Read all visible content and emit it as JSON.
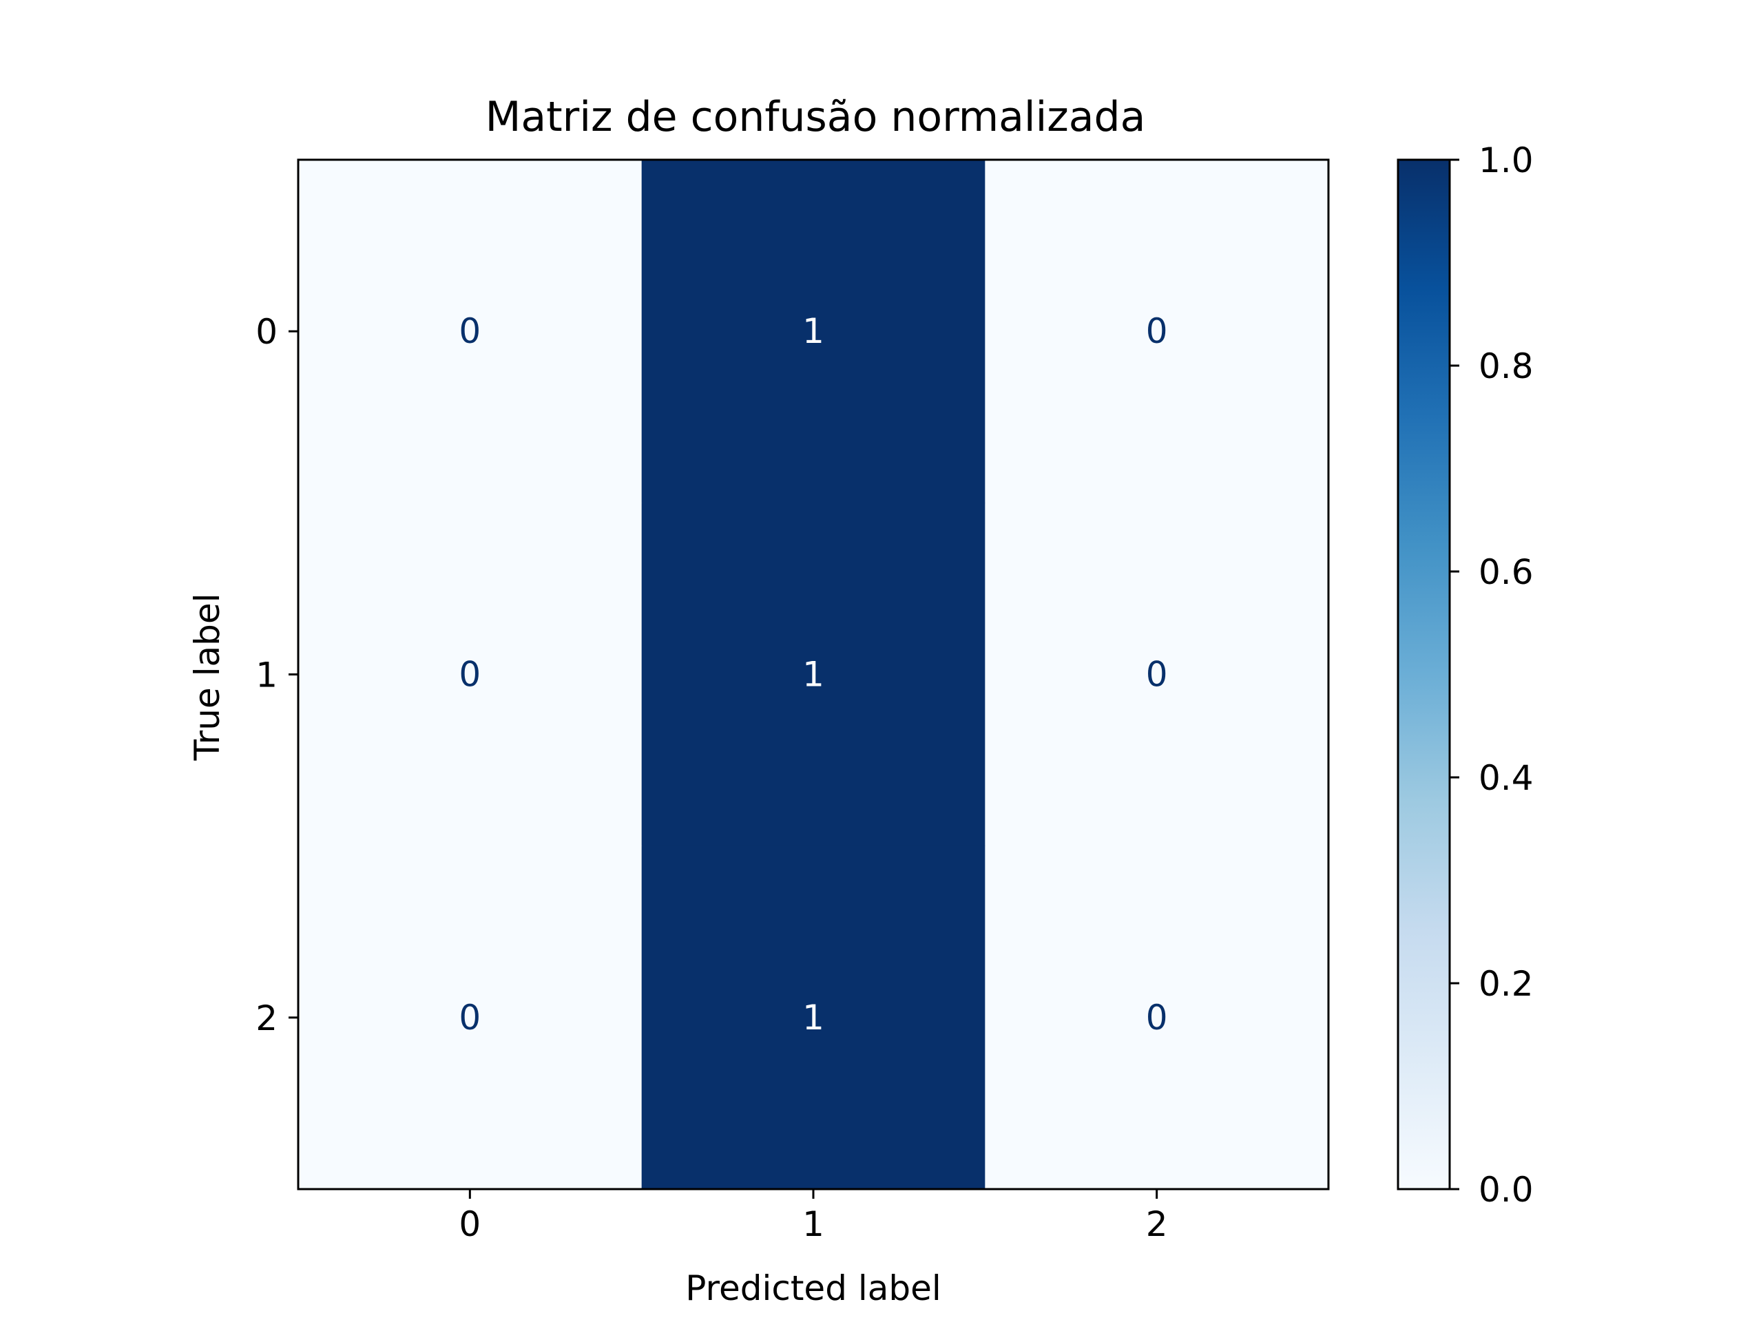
{
  "chart_data": {
    "type": "heatmap",
    "title": "Matriz de confusão normalizada",
    "xlabel": "Predicted label",
    "ylabel": "True label",
    "x_categories": [
      "0",
      "1",
      "2"
    ],
    "y_categories": [
      "0",
      "1",
      "2"
    ],
    "values": [
      [
        0,
        1,
        0
      ],
      [
        0,
        1,
        0
      ],
      [
        0,
        1,
        0
      ]
    ],
    "cell_labels": [
      [
        "0",
        "1",
        "0"
      ],
      [
        "0",
        "1",
        "0"
      ],
      [
        "0",
        "1",
        "0"
      ]
    ],
    "colormap": "Blues",
    "color_low": "#f7fbff",
    "color_high": "#08306b",
    "text_color_low": "#08306b",
    "text_color_high": "#ffffff",
    "colorbar": {
      "range": [
        0.0,
        1.0
      ],
      "ticks": [
        0.0,
        0.2,
        0.4,
        0.6,
        0.8,
        1.0
      ],
      "tick_labels": [
        "0.0",
        "0.2",
        "0.4",
        "0.6",
        "0.8",
        "1.0"
      ]
    }
  }
}
